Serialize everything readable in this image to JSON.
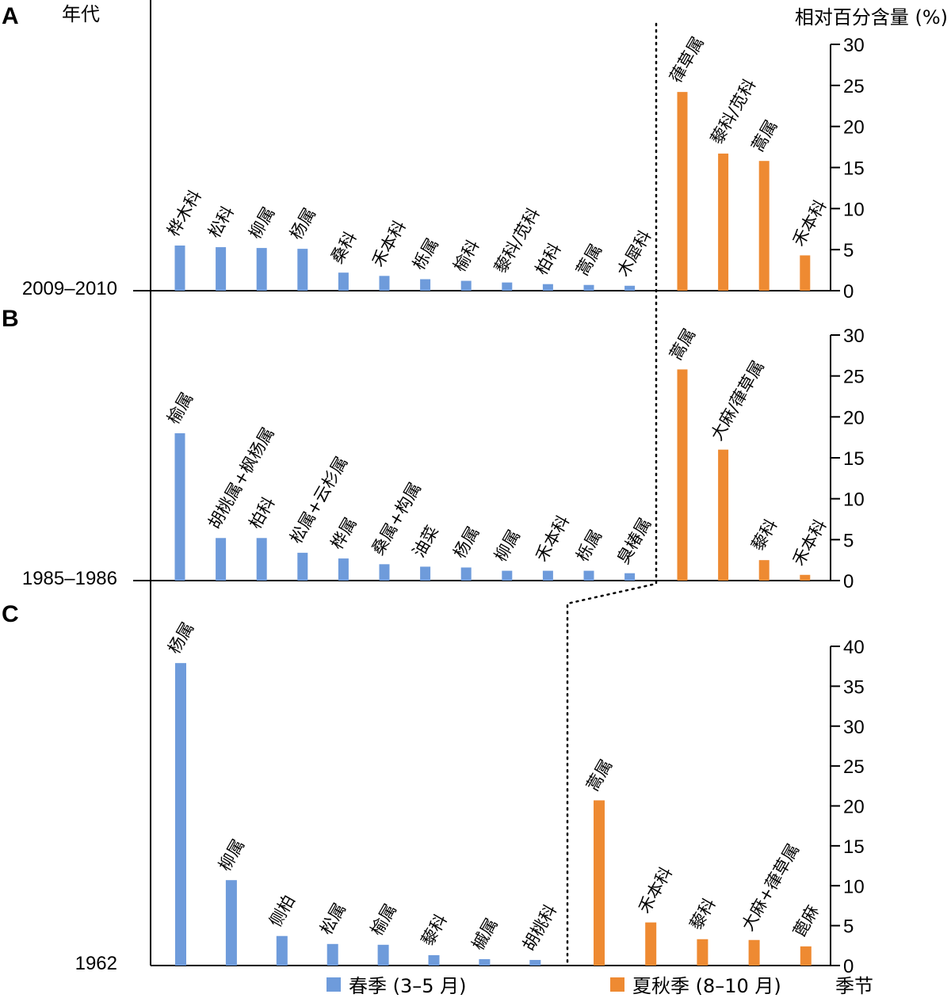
{
  "header": {
    "left_label": "年代",
    "right_label": "相对百分含量 (%)"
  },
  "legend": {
    "spring_label": "春季 (3–5 月)",
    "autumn_label": "夏秋季 (8–10 月)",
    "axis_label": "季节"
  },
  "colors": {
    "spring": "#6E9BDB",
    "autumn": "#EE8A32",
    "axis": "#000000"
  },
  "chart_data": [
    {
      "type": "bar",
      "panel": "A",
      "era": "2009–2010",
      "ylim": [
        0,
        30
      ],
      "yticks": [
        "0",
        "5",
        "10",
        "15",
        "20",
        "25",
        "30"
      ],
      "spring": [
        {
          "label": "桦木科",
          "value": 5.5
        },
        {
          "label": "松科",
          "value": 5.3
        },
        {
          "label": "柳属",
          "value": 5.2
        },
        {
          "label": "杨属",
          "value": 5.1
        },
        {
          "label": "桑科",
          "value": 2.2
        },
        {
          "label": "禾本科",
          "value": 1.8
        },
        {
          "label": "栎属",
          "value": 1.4
        },
        {
          "label": "榆科",
          "value": 1.2
        },
        {
          "label": "藜科/苋科",
          "value": 1.0
        },
        {
          "label": "柏科",
          "value": 0.8
        },
        {
          "label": "蒿属",
          "value": 0.7
        },
        {
          "label": "木犀科",
          "value": 0.6
        }
      ],
      "autumn": [
        {
          "label": "葎草属",
          "value": 24.2
        },
        {
          "label": "藜科/苋科",
          "value": 16.7
        },
        {
          "label": "蒿属",
          "value": 15.8
        },
        {
          "label": "禾本科",
          "value": 4.3
        }
      ]
    },
    {
      "type": "bar",
      "panel": "B",
      "era": "1985–1986",
      "ylim": [
        0,
        30
      ],
      "yticks": [
        "0",
        "5",
        "10",
        "15",
        "20",
        "25",
        "30"
      ],
      "spring": [
        {
          "label": "榆属",
          "value": 18.0
        },
        {
          "label": "胡桃属+枫杨属",
          "value": 5.2
        },
        {
          "label": "柏科",
          "value": 5.2
        },
        {
          "label": "松属+云杉属",
          "value": 3.4
        },
        {
          "label": "桦属",
          "value": 2.7
        },
        {
          "label": "桑属+构属",
          "value": 2.0
        },
        {
          "label": "油菜",
          "value": 1.7
        },
        {
          "label": "杨属",
          "value": 1.6
        },
        {
          "label": "柳属",
          "value": 1.2
        },
        {
          "label": "禾本科",
          "value": 1.2
        },
        {
          "label": "栎属",
          "value": 1.2
        },
        {
          "label": "臭椿属",
          "value": 0.9
        }
      ],
      "autumn": [
        {
          "label": "蒿属",
          "value": 25.8
        },
        {
          "label": "大麻/葎草属",
          "value": 16.0
        },
        {
          "label": "藜科",
          "value": 2.5
        },
        {
          "label": "禾本科",
          "value": 0.7
        }
      ]
    },
    {
      "type": "bar",
      "panel": "C",
      "era": "1962",
      "ylim": [
        0,
        40
      ],
      "yticks": [
        "0",
        "5",
        "10",
        "15",
        "20",
        "25",
        "30",
        "35",
        "40"
      ],
      "spring": [
        {
          "label": "杨属",
          "value": 37.9
        },
        {
          "label": "柳属",
          "value": 10.7
        },
        {
          "label": "侧柏",
          "value": 3.7
        },
        {
          "label": "松属",
          "value": 2.7
        },
        {
          "label": "榆属",
          "value": 2.6
        },
        {
          "label": "藜科",
          "value": 1.3
        },
        {
          "label": "槭属",
          "value": 0.8
        },
        {
          "label": "胡桃科",
          "value": 0.7
        }
      ],
      "autumn": [
        {
          "label": "蒿属",
          "value": 20.7
        },
        {
          "label": "禾本科",
          "value": 5.4
        },
        {
          "label": "藜科",
          "value": 3.3
        },
        {
          "label": "大麻+葎草属",
          "value": 3.2
        },
        {
          "label": "蓖麻",
          "value": 2.4
        }
      ]
    }
  ]
}
